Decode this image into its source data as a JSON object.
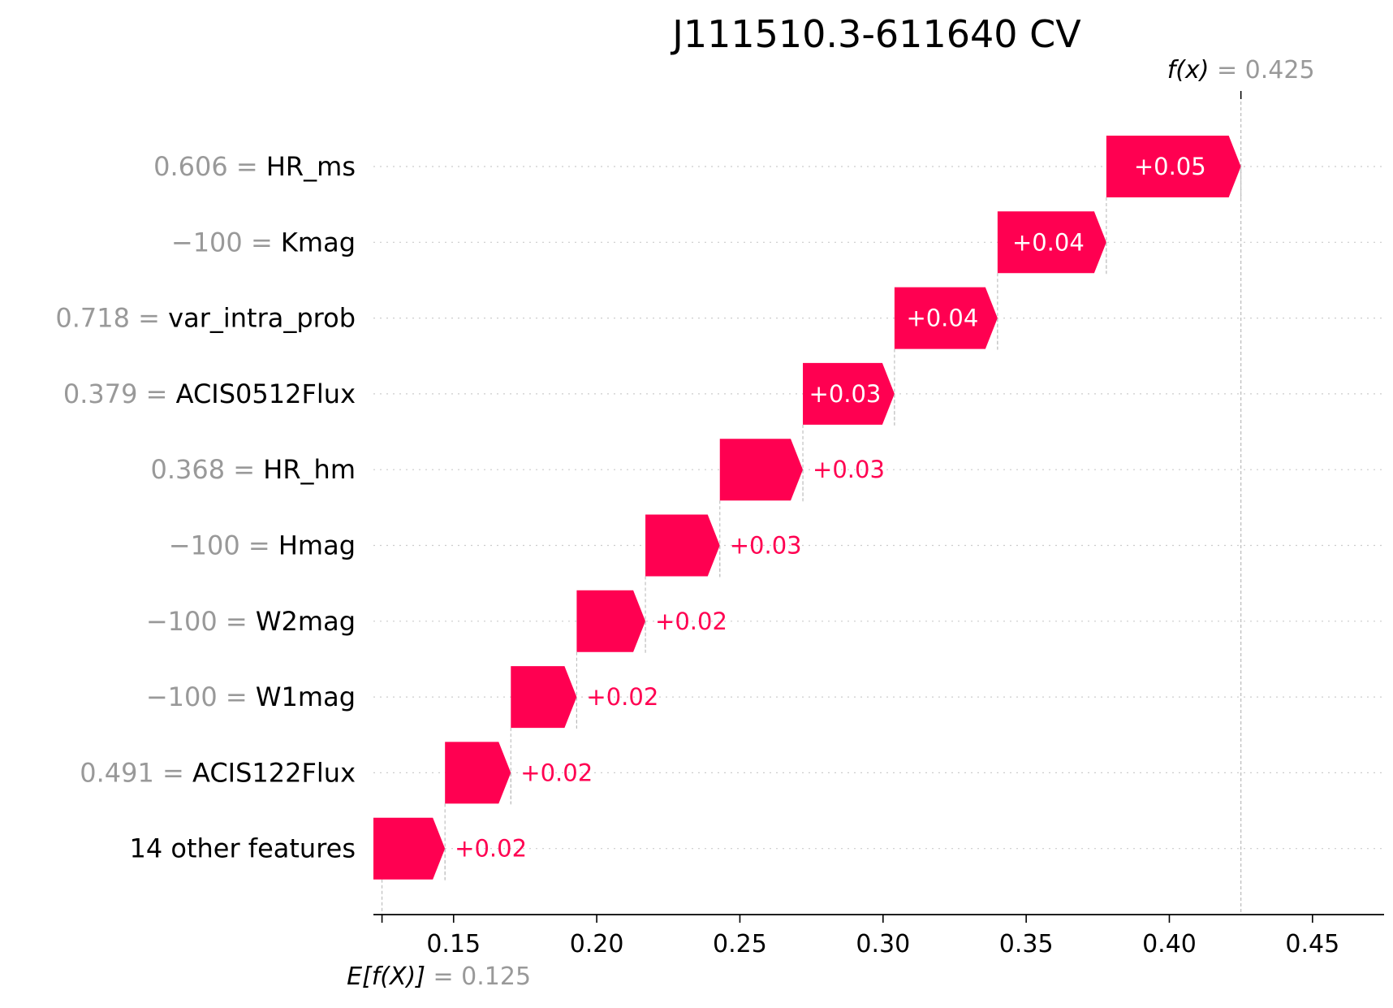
{
  "chart_data": {
    "type": "waterfall",
    "title": "J111510.3-611640 CV",
    "base_value": 0.125,
    "base_label": "E[f(X)]",
    "base_value_text": "= 0.125",
    "output_value": 0.425,
    "output_label": "f(x)",
    "output_value_text": "= 0.425",
    "xlim": [
      0.122,
      0.475
    ],
    "xticks": [
      0.15,
      0.2,
      0.25,
      0.3,
      0.35,
      0.4,
      0.45
    ],
    "xtick_labels": [
      "0.15",
      "0.20",
      "0.25",
      "0.30",
      "0.35",
      "0.40",
      "0.45"
    ],
    "features": [
      {
        "value": "0.606",
        "name": "HR_ms",
        "contribution": 0.047,
        "label": "+0.05",
        "start": 0.378
      },
      {
        "value": "−100",
        "name": "Kmag",
        "contribution": 0.038,
        "label": "+0.04",
        "start": 0.34
      },
      {
        "value": "0.718",
        "name": "var_intra_prob",
        "contribution": 0.036,
        "label": "+0.04",
        "start": 0.304
      },
      {
        "value": "0.379",
        "name": "ACIS0512Flux",
        "contribution": 0.032,
        "label": "+0.03",
        "start": 0.272
      },
      {
        "value": "0.368",
        "name": "HR_hm",
        "contribution": 0.029,
        "label": "+0.03",
        "start": 0.243
      },
      {
        "value": "−100",
        "name": "Hmag",
        "contribution": 0.026,
        "label": "+0.03",
        "start": 0.217
      },
      {
        "value": "−100",
        "name": "W2mag",
        "contribution": 0.024,
        "label": "+0.02",
        "start": 0.193
      },
      {
        "value": "−100",
        "name": "W1mag",
        "contribution": 0.023,
        "label": "+0.02",
        "start": 0.17
      },
      {
        "value": "0.491",
        "name": "ACIS122Flux",
        "contribution": 0.023,
        "label": "+0.02",
        "start": 0.147
      },
      {
        "value": "",
        "name": "14 other features",
        "contribution": 0.025,
        "label": "+0.02",
        "start": 0.122
      }
    ],
    "colors": {
      "positive": "#ff0051",
      "grid": "#cccccc",
      "value_text": "#999999"
    },
    "grid": true
  }
}
